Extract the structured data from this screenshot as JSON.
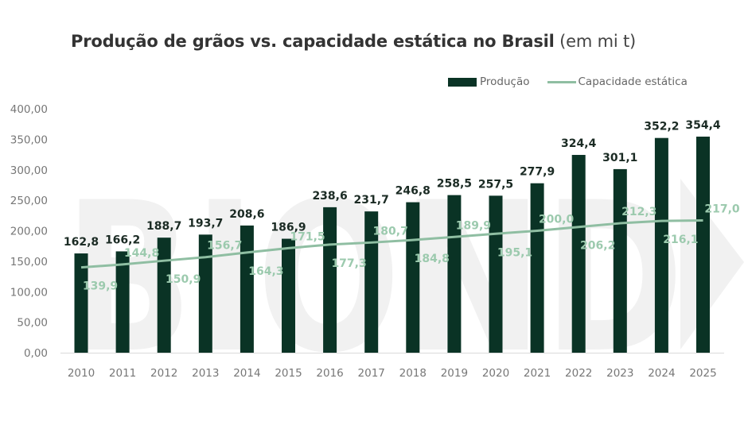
{
  "title": {
    "bold": "Produção de grãos vs. capacidade estática no Brasil",
    "light": "(em mi t)"
  },
  "legend": {
    "bar_label": "Produção",
    "line_label": "Capacidade estática"
  },
  "colors": {
    "bar": "#0a3325",
    "line": "#8fbea2",
    "line_label": "#9ccaae",
    "bar_label": "#1b2b24",
    "axis_text": "#777777",
    "watermark": "#f1f1f1"
  },
  "chart_data": {
    "type": "bar",
    "title": "Produção de grãos vs. capacidade estática no Brasil (em mi t)",
    "xlabel": "",
    "ylabel": "",
    "categories": [
      "2010",
      "2011",
      "2012",
      "2013",
      "2014",
      "2015",
      "2016",
      "2017",
      "2018",
      "2019",
      "2020",
      "2021",
      "2022",
      "2023",
      "2024",
      "2025"
    ],
    "series": [
      {
        "name": "Produção",
        "type": "bar",
        "values": [
          162.8,
          166.2,
          188.7,
          193.7,
          208.6,
          186.9,
          238.6,
          231.7,
          246.8,
          258.5,
          257.5,
          277.9,
          324.4,
          301.1,
          352.2,
          354.4
        ],
        "labels": [
          "162,8",
          "166,2",
          "188,7",
          "193,7",
          "208,6",
          "186,9",
          "238,6",
          "231,7",
          "246,8",
          "258,5",
          "257,5",
          "277,9",
          "324,4",
          "301,1",
          "352,2",
          "354,4"
        ]
      },
      {
        "name": "Capacidade estática",
        "type": "line",
        "values": [
          139.9,
          144.8,
          150.9,
          156.7,
          164.3,
          171.5,
          177.3,
          180.7,
          184.8,
          189.9,
          195.1,
          200.0,
          206.2,
          212.3,
          216.1,
          217.0
        ],
        "labels": [
          "139,9",
          "144,8",
          "150,9",
          "156,7",
          "164,3",
          "171,5",
          "177,3",
          "180,7",
          "184,8",
          "189,9",
          "195,1",
          "200,0",
          "206,2",
          "212,3",
          "216,1",
          "217,0"
        ]
      }
    ],
    "ylim": [
      0,
      400
    ],
    "yticks": [
      "0,00",
      "50,00",
      "100,00",
      "150,00",
      "200,00",
      "250,00",
      "300,00",
      "350,00",
      "400,00"
    ],
    "ytick_values": [
      0,
      50,
      100,
      150,
      200,
      250,
      300,
      350,
      400
    ],
    "grid": false,
    "legend_position": "top-right",
    "watermark_text": "BIOND"
  }
}
